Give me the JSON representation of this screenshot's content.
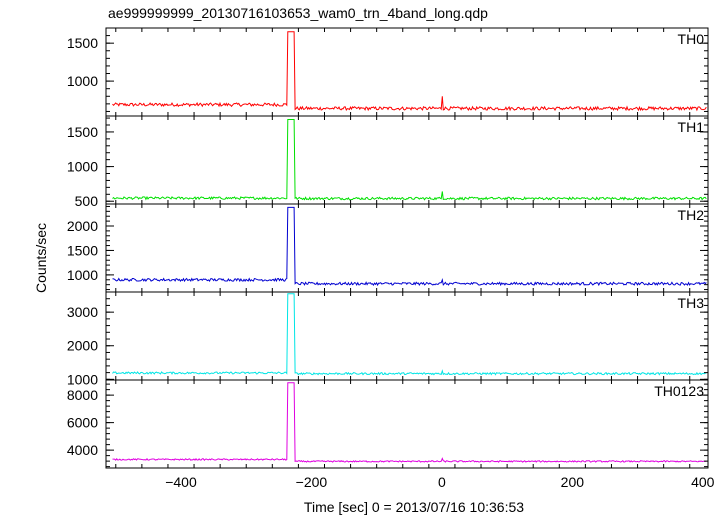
{
  "chart_data": {
    "type": "line",
    "title": "ae999999999_20130716103653_wam0_trn_4band_long.qdp",
    "xlabel": "Time [sec] 0 = 2013/07/16 10:36:53",
    "ylabel": "Counts/sec",
    "xlim": [
      -515,
      408
    ],
    "xticks": [
      -400,
      -200,
      0,
      200,
      400
    ],
    "grid": false,
    "legend": "none",
    "panels": [
      {
        "name": "TH0",
        "color": "#ff0000",
        "ylim": [
          540,
          1700
        ],
        "yticks": [
          1000,
          1500
        ],
        "baseline_pre": 690,
        "baseline_post": 640,
        "noise": 22,
        "burst": {
          "x_start": -237,
          "x_end": -226,
          "value": 1650
        },
        "spike": {
          "x": 0,
          "value": 800
        }
      },
      {
        "name": "TH1",
        "color": "#00e000",
        "ylim": [
          460,
          1730
        ],
        "yticks": [
          500,
          1000,
          1500
        ],
        "baseline_pre": 545,
        "baseline_post": 540,
        "noise": 18,
        "burst": {
          "x_start": -237,
          "x_end": -226,
          "value": 1680
        },
        "spike": {
          "x": 0,
          "value": 640
        }
      },
      {
        "name": "TH2",
        "color": "#0000d0",
        "ylim": [
          650,
          2450
        ],
        "yticks": [
          1000,
          1500,
          2000
        ],
        "baseline_pre": 900,
        "baseline_post": 820,
        "noise": 28,
        "burst": {
          "x_start": -237,
          "x_end": -226,
          "value": 2380
        },
        "spike": {
          "x": 0,
          "value": 900
        }
      },
      {
        "name": "TH3",
        "color": "#00e5e5",
        "ylim": [
          980,
          3600
        ],
        "yticks": [
          1000,
          2000,
          3000
        ],
        "baseline_pre": 1190,
        "baseline_post": 1170,
        "noise": 30,
        "burst": {
          "x_start": -237,
          "x_end": -226,
          "value": 3550
        },
        "spike": {
          "x": 0,
          "value": 1250
        }
      },
      {
        "name": "TH0123",
        "color": "#e000e0",
        "ylim": [
          2700,
          9100
        ],
        "yticks": [
          4000,
          6000,
          8000
        ],
        "baseline_pre": 3320,
        "baseline_post": 3180,
        "noise": 50,
        "burst": {
          "x_start": -237,
          "x_end": -226,
          "value": 8900
        },
        "spike": {
          "x": 0,
          "value": 3400
        }
      }
    ]
  }
}
